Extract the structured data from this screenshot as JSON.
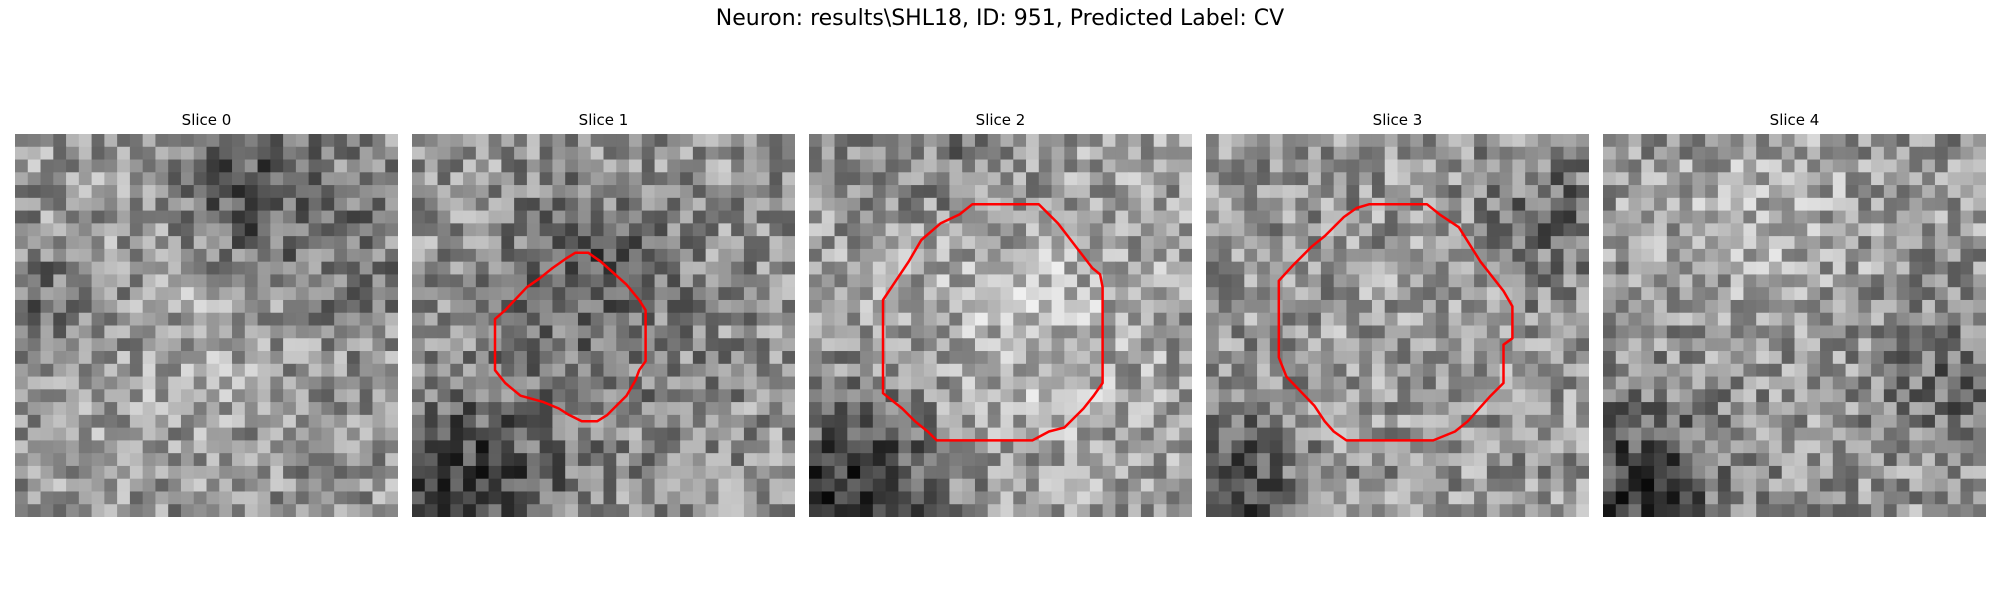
{
  "figure": {
    "title": "Neuron: results\\SHL18, ID: 951, Predicted Label: CV"
  },
  "panels": [
    {
      "title": "Slice 0",
      "has_roi": false,
      "seed": 11
    },
    {
      "title": "Slice 1",
      "has_roi": true,
      "seed": 23
    },
    {
      "title": "Slice 2",
      "has_roi": true,
      "seed": 37
    },
    {
      "title": "Slice 3",
      "has_roi": true,
      "seed": 51
    },
    {
      "title": "Slice 4",
      "has_roi": false,
      "seed": 67
    }
  ],
  "colors": {
    "roi_outline": "#ff0000",
    "background": "#ffffff",
    "colormap": "gray"
  }
}
